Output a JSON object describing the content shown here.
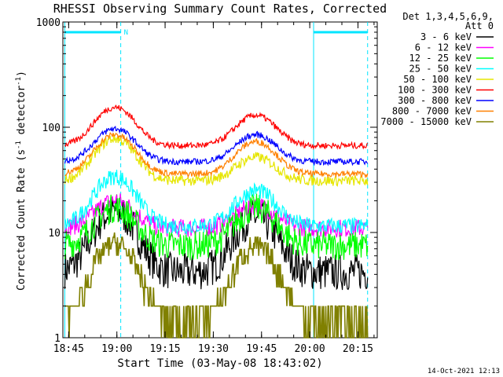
{
  "chart_data": {
    "type": "line",
    "title": "RHESSI Observing Summary Count Rates, Corrected",
    "xlabel": "Start Time (03-May-08 18:43:02)",
    "ylabel_parts": [
      "Corrected Count Rate (s",
      "-1",
      " detector",
      "-1",
      ")"
    ],
    "yscale": "log",
    "ylim": [
      1,
      1000
    ],
    "y_ticks": [
      {
        "value": 1,
        "label": "1"
      },
      {
        "value": 10,
        "label": "10"
      },
      {
        "value": 100,
        "label": "100"
      },
      {
        "value": 1000,
        "label": "1000"
      }
    ],
    "x_range_minutes": [
      18.72,
      20.35
    ],
    "x_ticks": [
      {
        "value": 18.75,
        "label": "18:45"
      },
      {
        "value": 19.0,
        "label": "19:00"
      },
      {
        "value": 19.25,
        "label": "19:15"
      },
      {
        "value": 19.5,
        "label": "19:30"
      },
      {
        "value": 19.75,
        "label": "19:45"
      },
      {
        "value": 20.0,
        "label": "20:00"
      },
      {
        "value": 20.25,
        "label": "20:15"
      }
    ],
    "legend_header": [
      "Det 1,3,4,5,6,9,",
      "Att 0"
    ],
    "legend_position": "right",
    "footer_date": "14-Oct-2021 12:13",
    "annotations": {
      "night_bars": [
        {
          "start": 18.73,
          "end": 19.02,
          "label": "N"
        },
        {
          "start": 20.02,
          "end": 20.3,
          "label": ""
        }
      ],
      "boundaries": [
        18.73,
        19.02,
        20.02,
        20.3
      ]
    },
    "series": [
      {
        "name": "3 - 6 keV",
        "color": "#000000",
        "base": 4.2,
        "p1": 16,
        "p2": 14,
        "noise": 0.18
      },
      {
        "name": "6 - 12 keV",
        "color": "#ff00ff",
        "base": 11,
        "p1": 20,
        "p2": 18,
        "noise": 0.09
      },
      {
        "name": "12 - 25 keV",
        "color": "#00ff00",
        "base": 7.5,
        "p1": 17,
        "p2": 17,
        "noise": 0.14
      },
      {
        "name": "25 - 50 keV",
        "color": "#00ffff",
        "base": 11.5,
        "p1": 34,
        "p2": 25,
        "noise": 0.08
      },
      {
        "name": "50 - 100 keV",
        "color": "#e6e600",
        "base": 31,
        "p1": 78,
        "p2": 52,
        "noise": 0.05
      },
      {
        "name": "100 - 300 keV",
        "color": "#ff0000",
        "base": 67,
        "p1": 155,
        "p2": 130,
        "noise": 0.03
      },
      {
        "name": "300 - 800 keV",
        "color": "#0000ff",
        "base": 47,
        "p1": 97,
        "p2": 85,
        "noise": 0.03
      },
      {
        "name": "800 - 7000 keV",
        "color": "#ff8000",
        "base": 36,
        "p1": 85,
        "p2": 73,
        "noise": 0.03
      },
      {
        "name": "7000 - 15000 keV",
        "color": "#808000",
        "base": 1.5,
        "p1": 8,
        "p2": 7.5,
        "noise": 0.0
      }
    ]
  }
}
